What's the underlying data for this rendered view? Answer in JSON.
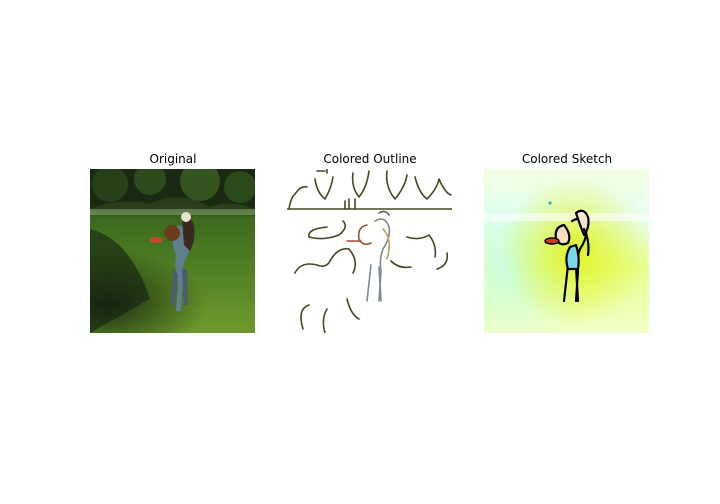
{
  "figure": {
    "panels": [
      {
        "title": "Original"
      },
      {
        "title": "Colored Outline"
      },
      {
        "title": "Colored Sketch"
      }
    ]
  }
}
